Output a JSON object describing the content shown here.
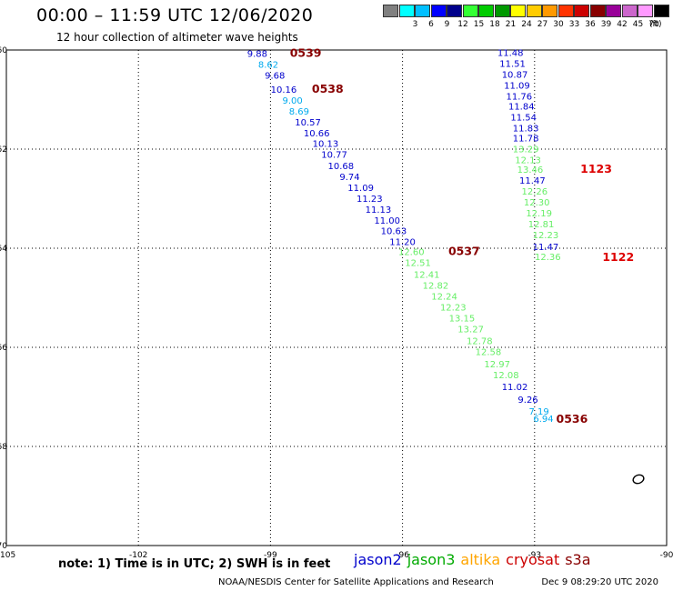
{
  "title": "00:00 – 11:59 UTC 12/06/2020",
  "subtitle": "12 hour collection of altimeter wave heights",
  "legend": {
    "unit": "(ft)",
    "swatches": [
      {
        "color": "#808080",
        "label": ""
      },
      {
        "color": "#00ffff",
        "label": "3"
      },
      {
        "color": "#00bfff",
        "label": "6"
      },
      {
        "color": "#0000ff",
        "label": "9"
      },
      {
        "color": "#00008b",
        "label": "12"
      },
      {
        "color": "#33ff33",
        "label": "15"
      },
      {
        "color": "#00cc00",
        "label": "18"
      },
      {
        "color": "#009900",
        "label": "21"
      },
      {
        "color": "#ffff00",
        "label": "24"
      },
      {
        "color": "#ffcc00",
        "label": "27"
      },
      {
        "color": "#ff9900",
        "label": "30"
      },
      {
        "color": "#ff3300",
        "label": "33"
      },
      {
        "color": "#cc0000",
        "label": "36"
      },
      {
        "color": "#880000",
        "label": "39"
      },
      {
        "color": "#990099",
        "label": "42"
      },
      {
        "color": "#cc66cc",
        "label": "45"
      },
      {
        "color": "#ff99ff",
        "label": "70"
      },
      {
        "color": "#000000",
        "label": ""
      }
    ]
  },
  "map": {
    "lon_min": -105,
    "lon_max": -90,
    "lat_min": -70,
    "lat_max": -60,
    "lon_labels": [
      {
        "lon": -105,
        "text": "-105"
      },
      {
        "lon": -102,
        "text": "-102"
      },
      {
        "lon": -99,
        "text": "-99"
      },
      {
        "lon": -96,
        "text": "-96"
      },
      {
        "lon": -93,
        "text": "-93"
      },
      {
        "lon": -90,
        "text": "-90"
      }
    ],
    "lat_labels": [
      {
        "lat": -60,
        "text": "-60"
      },
      {
        "lat": -62,
        "text": "-62"
      },
      {
        "lat": -64,
        "text": "-64"
      },
      {
        "lat": -66,
        "text": "-66"
      },
      {
        "lat": -68,
        "text": "-68"
      },
      {
        "lat": -70,
        "text": "-70"
      }
    ],
    "colors": {
      "jason2": "#0000cc",
      "jason3": "#66ee66",
      "altika": "#ffa500",
      "cryosat": "#cc0000",
      "s3a": "#880000",
      "light_blue": "#00aaee"
    }
  },
  "points": [
    {
      "lon": -99.3,
      "lat": -60.14,
      "v": "9.88",
      "c": "#0000cc"
    },
    {
      "lon": -99.05,
      "lat": -60.36,
      "v": "8.62",
      "c": "#00aaee"
    },
    {
      "lon": -98.9,
      "lat": -60.58,
      "v": "9.68",
      "c": "#0000cc"
    },
    {
      "lon": -98.7,
      "lat": -60.86,
      "v": "10.16",
      "c": "#0000cc"
    },
    {
      "lon": -98.5,
      "lat": -61.08,
      "v": "9.00",
      "c": "#00aaee"
    },
    {
      "lon": -98.35,
      "lat": -61.3,
      "v": "8.69",
      "c": "#00aaee"
    },
    {
      "lon": -98.15,
      "lat": -61.52,
      "v": "10.57",
      "c": "#0000cc"
    },
    {
      "lon": -97.95,
      "lat": -61.74,
      "v": "10.66",
      "c": "#0000cc"
    },
    {
      "lon": -97.75,
      "lat": -61.95,
      "v": "10.13",
      "c": "#0000cc"
    },
    {
      "lon": -97.55,
      "lat": -62.17,
      "v": "10.77",
      "c": "#0000cc"
    },
    {
      "lon": -97.4,
      "lat": -62.4,
      "v": "10.68",
      "c": "#0000cc"
    },
    {
      "lon": -97.2,
      "lat": -62.62,
      "v": "9.74",
      "c": "#0000cc"
    },
    {
      "lon": -96.95,
      "lat": -62.84,
      "v": "11.09",
      "c": "#0000cc"
    },
    {
      "lon": -96.75,
      "lat": -63.06,
      "v": "11.23",
      "c": "#0000cc"
    },
    {
      "lon": -96.55,
      "lat": -63.28,
      "v": "11.13",
      "c": "#0000cc"
    },
    {
      "lon": -96.35,
      "lat": -63.5,
      "v": "11.00",
      "c": "#0000cc"
    },
    {
      "lon": -96.2,
      "lat": -63.72,
      "v": "10.63",
      "c": "#0000cc"
    },
    {
      "lon": -96.0,
      "lat": -63.94,
      "v": "11.20",
      "c": "#0000cc"
    },
    {
      "lon": -95.8,
      "lat": -64.14,
      "v": "12.60",
      "c": "#66ee66"
    },
    {
      "lon": -95.65,
      "lat": -64.36,
      "v": "12.51",
      "c": "#66ee66"
    },
    {
      "lon": -95.45,
      "lat": -64.6,
      "v": "12.41",
      "c": "#66ee66"
    },
    {
      "lon": -95.25,
      "lat": -64.82,
      "v": "12.82",
      "c": "#66ee66"
    },
    {
      "lon": -95.05,
      "lat": -65.04,
      "v": "12.24",
      "c": "#66ee66"
    },
    {
      "lon": -94.85,
      "lat": -65.26,
      "v": "12.23",
      "c": "#66ee66"
    },
    {
      "lon": -94.65,
      "lat": -65.48,
      "v": "13.15",
      "c": "#66ee66"
    },
    {
      "lon": -94.45,
      "lat": -65.7,
      "v": "13.27",
      "c": "#66ee66"
    },
    {
      "lon": -94.25,
      "lat": -65.94,
      "v": "12.78",
      "c": "#66ee66"
    },
    {
      "lon": -94.05,
      "lat": -66.16,
      "v": "12.58",
      "c": "#66ee66"
    },
    {
      "lon": -93.85,
      "lat": -66.4,
      "v": "12.97",
      "c": "#66ee66"
    },
    {
      "lon": -93.65,
      "lat": -66.62,
      "v": "12.08",
      "c": "#66ee66"
    },
    {
      "lon": -93.45,
      "lat": -66.86,
      "v": "11.02",
      "c": "#0000cc"
    },
    {
      "lon": -93.15,
      "lat": -67.12,
      "v": "9.26",
      "c": "#0000cc"
    },
    {
      "lon": -92.9,
      "lat": -67.36,
      "v": "7.19",
      "c": "#00aaee"
    },
    {
      "lon": -92.8,
      "lat": -67.5,
      "v": "6.94",
      "c": "#00aaee"
    },
    {
      "lon": -93.55,
      "lat": -60.12,
      "v": "11.48",
      "c": "#0000cc"
    },
    {
      "lon": -93.5,
      "lat": -60.34,
      "v": "11.51",
      "c": "#0000cc"
    },
    {
      "lon": -93.45,
      "lat": -60.56,
      "v": "10.87",
      "c": "#0000cc"
    },
    {
      "lon": -93.4,
      "lat": -60.78,
      "v": "11.09",
      "c": "#0000cc"
    },
    {
      "lon": -93.35,
      "lat": -61.0,
      "v": "11.76",
      "c": "#0000cc"
    },
    {
      "lon": -93.3,
      "lat": -61.2,
      "v": "11.84",
      "c": "#0000cc"
    },
    {
      "lon": -93.25,
      "lat": -61.42,
      "v": "11.54",
      "c": "#0000cc"
    },
    {
      "lon": -93.2,
      "lat": -61.64,
      "v": "11.83",
      "c": "#0000cc"
    },
    {
      "lon": -93.2,
      "lat": -61.84,
      "v": "11.78",
      "c": "#0000cc"
    },
    {
      "lon": -93.2,
      "lat": -62.06,
      "v": "13.29",
      "c": "#66ee66"
    },
    {
      "lon": -93.15,
      "lat": -62.28,
      "v": "12.13",
      "c": "#66ee66"
    },
    {
      "lon": -93.1,
      "lat": -62.48,
      "v": "13.46",
      "c": "#66ee66"
    },
    {
      "lon": -93.05,
      "lat": -62.7,
      "v": "11.47",
      "c": "#0000cc"
    },
    {
      "lon": -93.0,
      "lat": -62.92,
      "v": "12.26",
      "c": "#66ee66"
    },
    {
      "lon": -92.95,
      "lat": -63.14,
      "v": "12.30",
      "c": "#66ee66"
    },
    {
      "lon": -92.9,
      "lat": -63.36,
      "v": "12.19",
      "c": "#66ee66"
    },
    {
      "lon": -92.85,
      "lat": -63.58,
      "v": "12.81",
      "c": "#66ee66"
    },
    {
      "lon": -92.75,
      "lat": -63.8,
      "v": "12.23",
      "c": "#66ee66"
    },
    {
      "lon": -92.75,
      "lat": -64.04,
      "v": "11.47",
      "c": "#0000cc"
    },
    {
      "lon": -92.7,
      "lat": -64.24,
      "v": "12.36",
      "c": "#66ee66"
    }
  ],
  "passes": [
    {
      "lon": -98.2,
      "lat": -60.14,
      "text": "0539",
      "c": "#880000"
    },
    {
      "lon": -97.7,
      "lat": -60.86,
      "text": "0538",
      "c": "#880000"
    },
    {
      "lon": -94.6,
      "lat": -64.14,
      "text": "0537",
      "c": "#880000"
    },
    {
      "lon": -92.15,
      "lat": -67.52,
      "text": "0536",
      "c": "#880000"
    },
    {
      "lon": -91.6,
      "lat": -62.48,
      "text": "1123",
      "c": "#dd0000"
    },
    {
      "lon": -91.1,
      "lat": -64.26,
      "text": "1122",
      "c": "#dd0000"
    }
  ],
  "footer": {
    "note": "note: 1) Time is in UTC; 2) SWH is in feet",
    "sats": [
      {
        "name": "jason2",
        "color": "#0000cc"
      },
      {
        "name": "jason3",
        "color": "#00aa00"
      },
      {
        "name": "altika",
        "color": "#ffa500"
      },
      {
        "name": "cryosat",
        "color": "#cc0000"
      },
      {
        "name": "s3a",
        "color": "#880000"
      }
    ],
    "org": "NOAA/NESDIS Center for Satellite Applications and Research",
    "timestamp": "Dec  9 08:29:20 UTC 2020"
  }
}
